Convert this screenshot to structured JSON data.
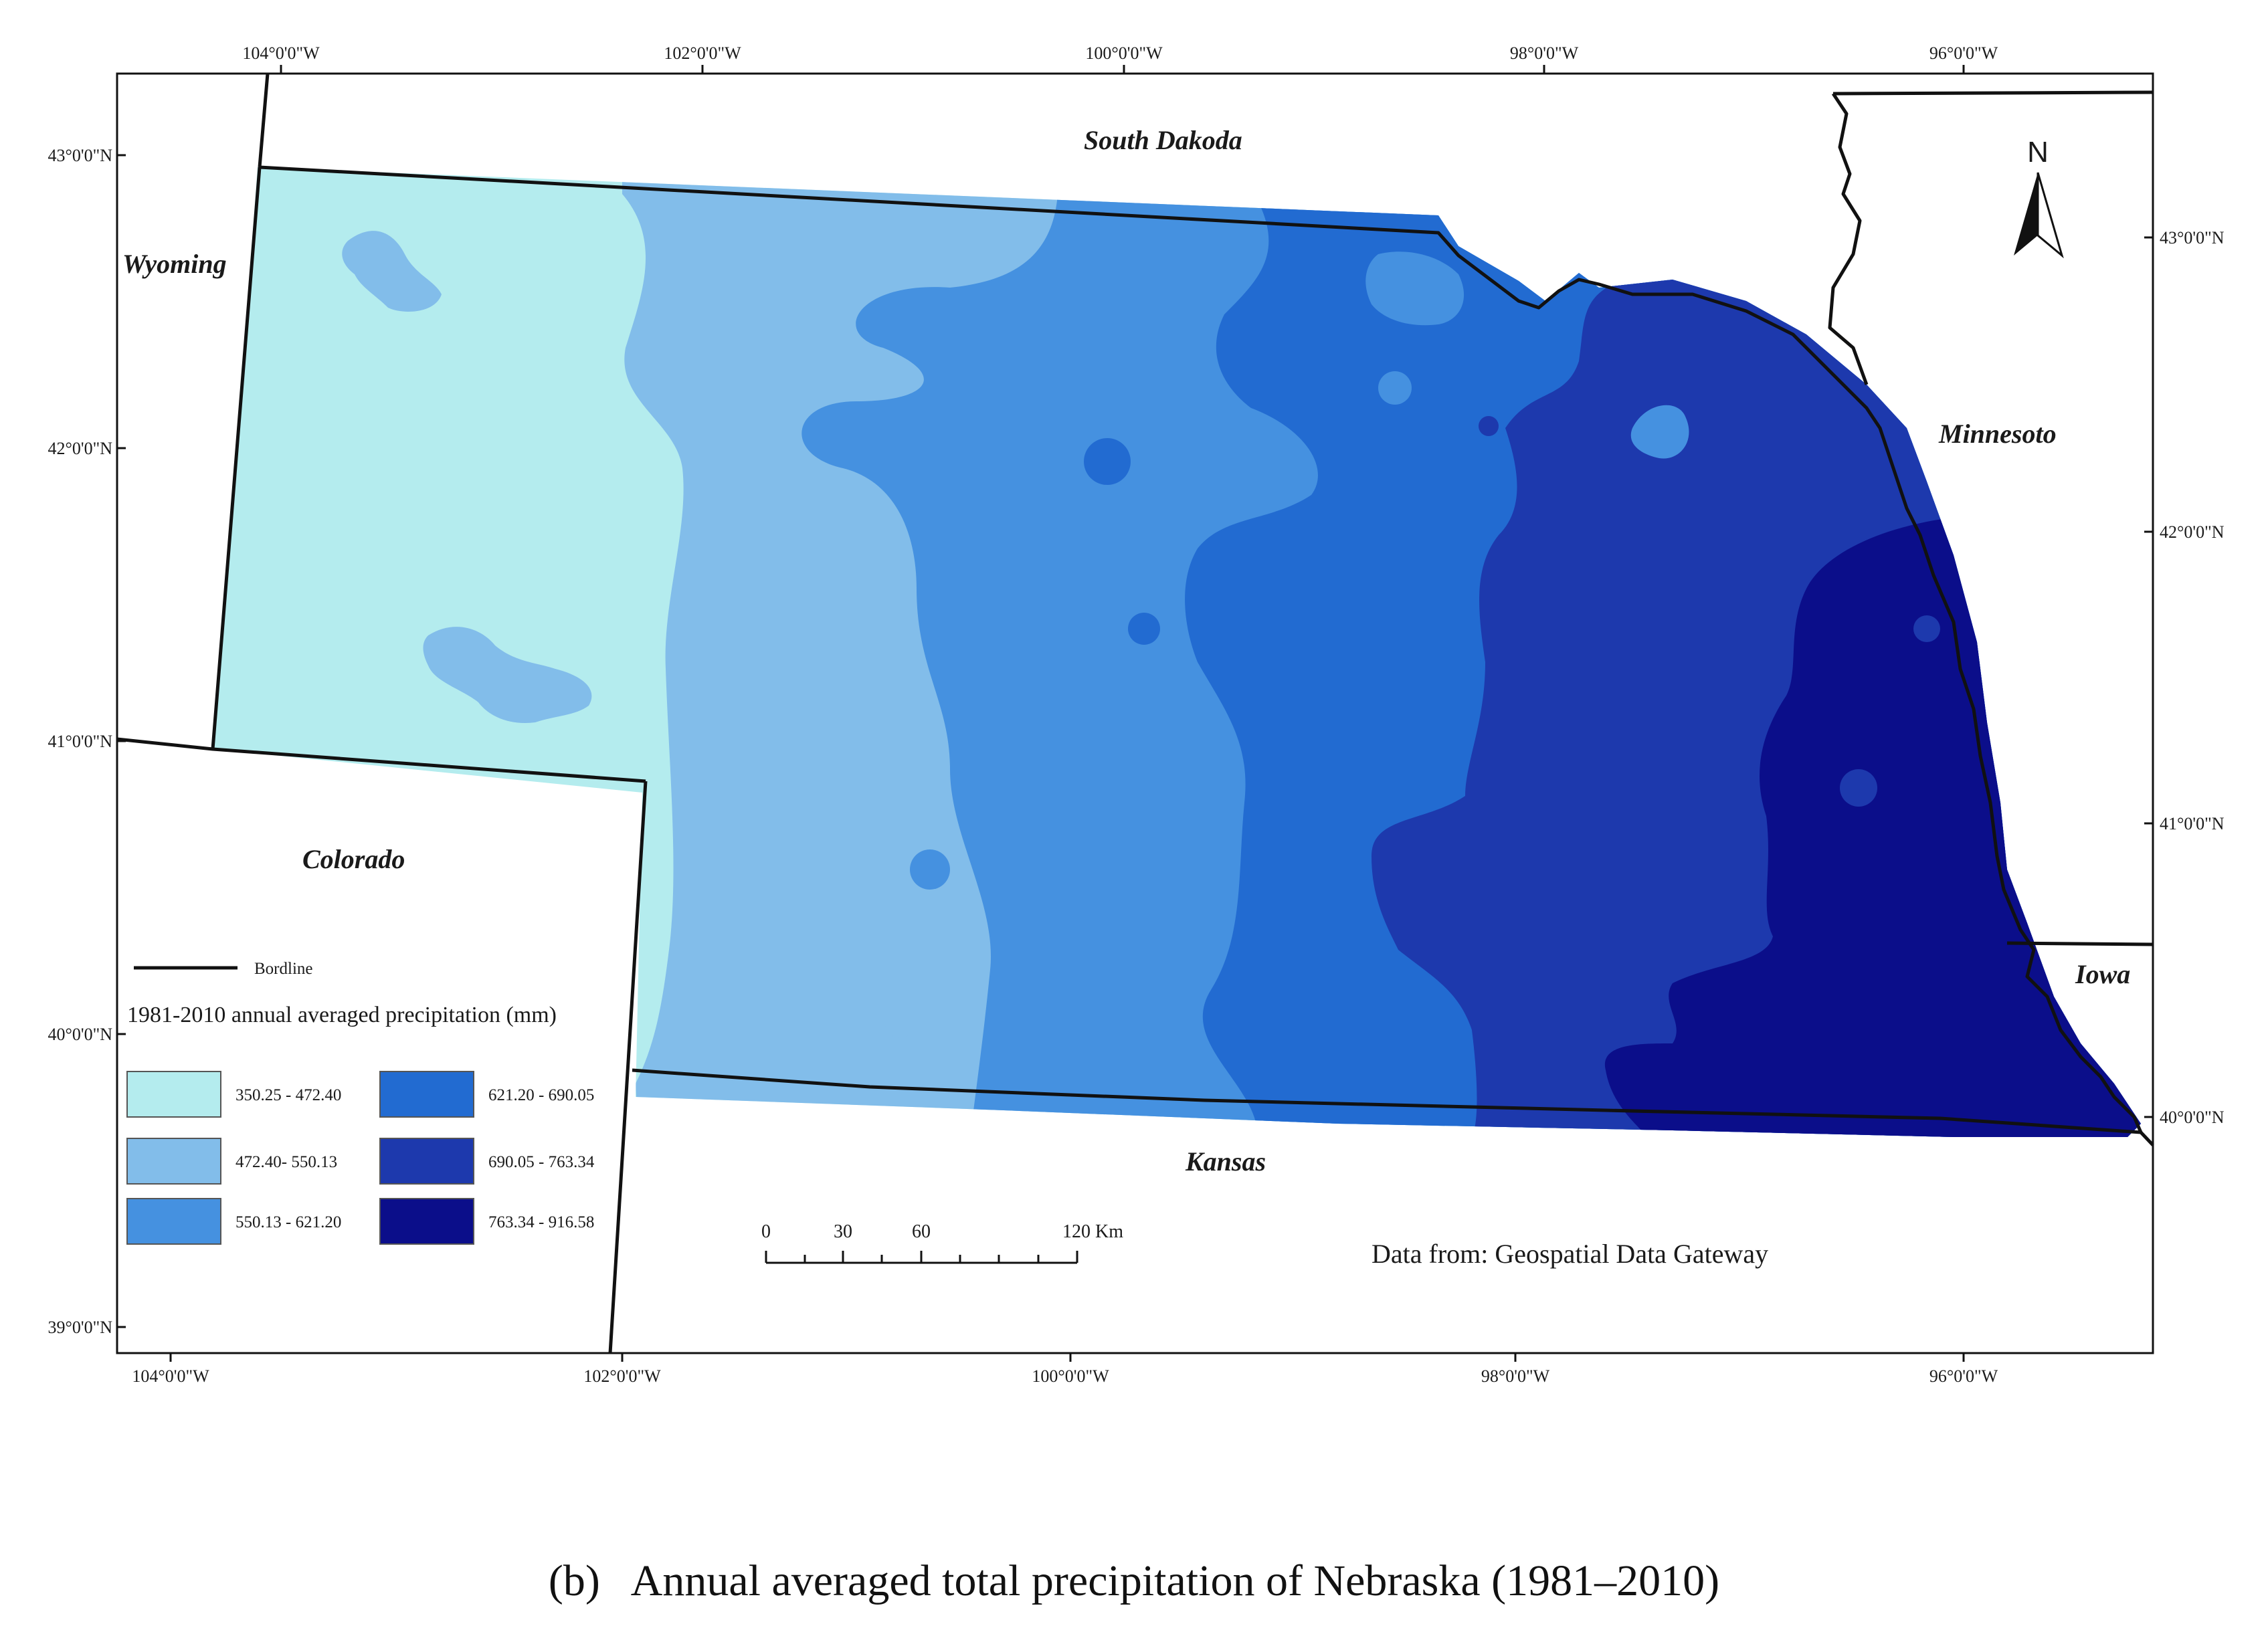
{
  "states": {
    "south_dakota": "South Dakoda",
    "wyoming": "Wyoming",
    "colorado": "Colorado",
    "minnesota": "Minnesoto",
    "iowa": "Iowa",
    "kansas": "Kansas"
  },
  "top_longitudes": [
    "104°0'0\"W",
    "102°0'0\"W",
    "100°0'0\"W",
    "98°0'0\"W",
    "96°0'0\"W"
  ],
  "bottom_longitudes": [
    "104°0'0\"W",
    "102°0'0\"W",
    "100°0'0\"W",
    "98°0'0\"W",
    "96°0'0\"W"
  ],
  "left_latitudes": [
    "43°0'0\"N",
    "42°0'0\"N",
    "41°0'0\"N",
    "40°0'0\"N",
    "39°0'0\"N"
  ],
  "right_latitudes": [
    "43°0'0\"N",
    "42°0'0\"N",
    "41°0'0\"N",
    "40°0'0\"N"
  ],
  "north_arrow": "N",
  "legend": {
    "borderline_label": "Bordline",
    "title": "1981-2010 annual averaged precipitation (mm)",
    "classes": [
      {
        "label": "350.25 - 472.40",
        "color": "#b4ecee"
      },
      {
        "label": "472.40- 550.13",
        "color": "#82bdea"
      },
      {
        "label": "550.13 - 621.20",
        "color": "#4591e0"
      },
      {
        "label": "621.20 - 690.05",
        "color": "#226bd1"
      },
      {
        "label": "690.05 - 763.34",
        "color": "#1d39ad"
      },
      {
        "label": "763.34 - 916.58",
        "color": "#0b0e8a"
      }
    ]
  },
  "scale_bar": {
    "ticks": [
      "0",
      "30",
      "60",
      "120 Km"
    ]
  },
  "source": "Data from: Geospatial Data Gateway",
  "caption": "(b)   Annual averaged total precipitation of Nebraska (1981–2010)"
}
